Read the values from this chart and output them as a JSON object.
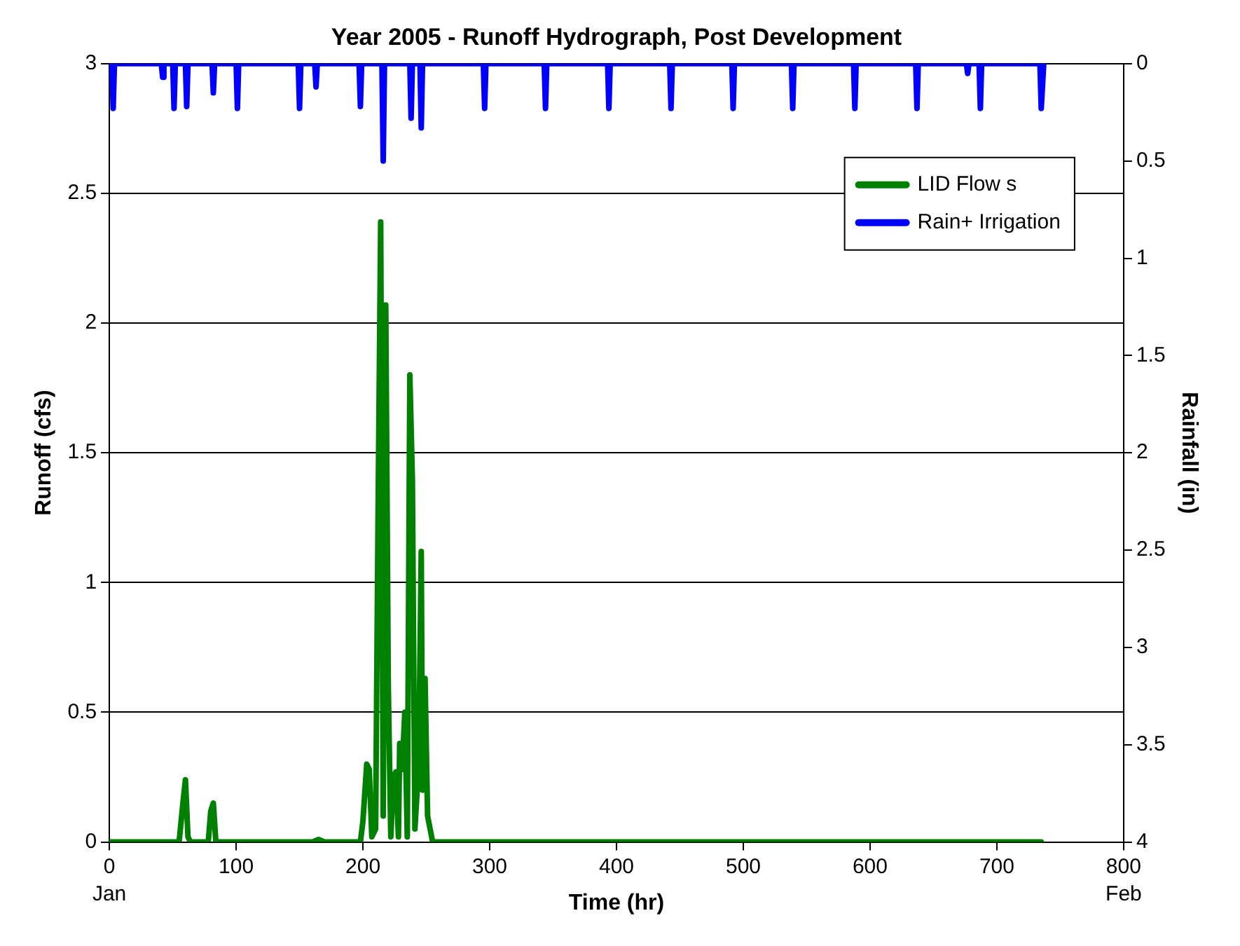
{
  "chart_data": {
    "type": "line",
    "title": "Year 2005 - Runoff Hydrograph, Post Development",
    "xlabel": "Time (hr)",
    "ylabel": "Runoff (cfs)",
    "y2label": "Rainfall (in)",
    "annotations": [
      "Jan",
      "Feb"
    ],
    "xlim": [
      0,
      800
    ],
    "xticks": [
      0,
      100,
      200,
      300,
      400,
      500,
      600,
      700,
      800
    ],
    "ylim": [
      0,
      3
    ],
    "yticks": [
      0,
      0.5,
      1,
      1.5,
      2,
      2.5,
      3
    ],
    "y2lim": [
      4,
      0
    ],
    "y2ticks": [
      0,
      0.5,
      1,
      1.5,
      2,
      2.5,
      3,
      3.5,
      4
    ],
    "grid": "y",
    "legend": "top right",
    "marker": "none",
    "line_style": "solid",
    "series": [
      {
        "name": "LID Flow s",
        "color": "#008000",
        "x": [
          0,
          55,
          58,
          60,
          62,
          64,
          78,
          80,
          82,
          84,
          160,
          165,
          170,
          198,
          200,
          203,
          205,
          207,
          210,
          212,
          214,
          216,
          218,
          220,
          222,
          224,
          226,
          228,
          229,
          231,
          233,
          235,
          237,
          239,
          241,
          244,
          246,
          247,
          249,
          251,
          253,
          255,
          735
        ],
        "values": [
          0,
          0,
          0.15,
          0.24,
          0.02,
          0,
          0,
          0.12,
          0.15,
          0,
          0,
          0.01,
          0,
          0,
          0.08,
          0.3,
          0.28,
          0.02,
          0.05,
          1.3,
          2.39,
          0.1,
          2.07,
          0.6,
          0.02,
          0.25,
          0.27,
          0.02,
          0.38,
          0.28,
          0.5,
          0.02,
          1.8,
          1.4,
          0.05,
          0.3,
          1.12,
          0.2,
          0.63,
          0.1,
          0.05,
          0,
          0
        ]
      },
      {
        "name": "Rain+ Irrigation",
        "color": "#0000ff",
        "axis": "y2",
        "x": [
          0,
          2,
          3,
          4,
          41,
          42,
          43,
          50,
          51,
          52,
          60,
          61,
          62,
          81,
          82,
          83,
          100,
          101,
          102,
          149,
          150,
          151,
          162,
          163,
          164,
          197,
          198,
          199,
          215,
          216,
          217,
          237,
          238,
          239,
          245,
          246,
          247,
          295,
          296,
          297,
          343,
          344,
          345,
          393,
          394,
          395,
          442,
          443,
          444,
          491,
          492,
          493,
          538,
          539,
          540,
          587,
          588,
          589,
          636,
          637,
          638,
          676,
          677,
          678,
          686,
          687,
          688,
          734,
          735,
          737
        ],
        "values": [
          0,
          0,
          0.23,
          0,
          0,
          0.07,
          0,
          0,
          0.23,
          0,
          0,
          0.22,
          0,
          0,
          0.15,
          0,
          0,
          0.23,
          0,
          0,
          0.23,
          0,
          0,
          0.12,
          0,
          0,
          0.22,
          0,
          0,
          0.5,
          0,
          0,
          0.28,
          0,
          0,
          0.33,
          0,
          0,
          0.23,
          0,
          0,
          0.23,
          0,
          0,
          0.23,
          0,
          0,
          0.23,
          0,
          0,
          0.23,
          0,
          0,
          0.23,
          0,
          0,
          0.23,
          0,
          0,
          0.23,
          0,
          0,
          0.05,
          0,
          0,
          0.23,
          0,
          0,
          0.23,
          0
        ]
      }
    ]
  }
}
